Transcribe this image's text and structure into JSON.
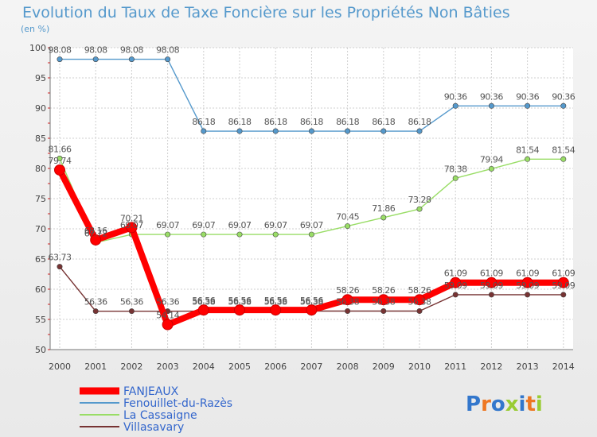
{
  "chart_data": {
    "type": "line",
    "title": "Evolution du Taux de Taxe Foncière sur les Propriétés Non Bâties",
    "ylabel": "(en %)",
    "xlabel": "",
    "ylim": [
      50,
      100
    ],
    "y_ticks": [
      50,
      55,
      60,
      65,
      70,
      75,
      80,
      85,
      90,
      95,
      100
    ],
    "categories": [
      "2000",
      "2001",
      "2002",
      "2003",
      "2004",
      "2005",
      "2006",
      "2007",
      "2008",
      "2009",
      "2010",
      "2011",
      "2012",
      "2013",
      "2014"
    ],
    "series": [
      {
        "name": "FANJEAUX",
        "color": "#ff0000",
        "values": [
          79.74,
          68.16,
          70.21,
          54.14,
          56.56,
          56.56,
          56.56,
          56.56,
          58.26,
          58.26,
          58.26,
          61.09,
          61.09,
          61.09,
          61.09
        ],
        "labels": [
          "79.74",
          "68.16",
          "70.21",
          "54.14",
          "56.56",
          "56.56",
          "56.56",
          "56.56",
          "58.26",
          "58.26",
          "58.26",
          "61.09",
          "61.09",
          "61.09",
          "61.09"
        ]
      },
      {
        "name": "Fenouillet-du-Razès",
        "color": "#5599cc",
        "values": [
          98.08,
          98.08,
          98.08,
          98.08,
          86.18,
          86.18,
          86.18,
          86.18,
          86.18,
          86.18,
          86.18,
          90.36,
          90.36,
          90.36,
          90.36
        ],
        "labels": [
          "98.08",
          "98.08",
          "98.08",
          "98.08",
          "86.18",
          "86.18",
          "86.18",
          "86.18",
          "86.18",
          "86.18",
          "86.18",
          "90.36",
          "90.36",
          "90.36",
          "90.36"
        ]
      },
      {
        "name": "La Cassaigne",
        "color": "#99dd66",
        "values": [
          81.66,
          67.72,
          69.07,
          69.07,
          69.07,
          69.07,
          69.07,
          69.07,
          70.45,
          71.86,
          73.28,
          78.38,
          79.94,
          81.54,
          81.54
        ],
        "labels": [
          "81.66",
          "67.72",
          "69.07",
          "69.07",
          "69.07",
          "69.07",
          "69.07",
          "69.07",
          "70.45",
          "71.86",
          "73.28",
          "78.38",
          "79.94",
          "81.54",
          "81.54"
        ]
      },
      {
        "name": "Villasavary",
        "color": "#773333",
        "values": [
          63.73,
          56.36,
          56.36,
          56.36,
          56.38,
          56.38,
          56.38,
          56.38,
          56.38,
          56.38,
          56.38,
          59.09,
          59.09,
          59.09,
          59.09
        ],
        "labels": [
          "63.73",
          "56.36",
          "56.36",
          "56.36",
          "56.38",
          "56.38",
          "56.38",
          "56.38",
          "56.38",
          "56.38",
          "56.38",
          "59.09",
          "59.09",
          "59.09",
          "59.09"
        ]
      }
    ],
    "legend": [
      "FANJEAUX",
      "Fenouillet-du-Razès",
      "La Cassaigne",
      "Villasavary"
    ],
    "legend_placement": "bottom-left",
    "grid": true
  },
  "brand": {
    "text": "Proxiti"
  }
}
